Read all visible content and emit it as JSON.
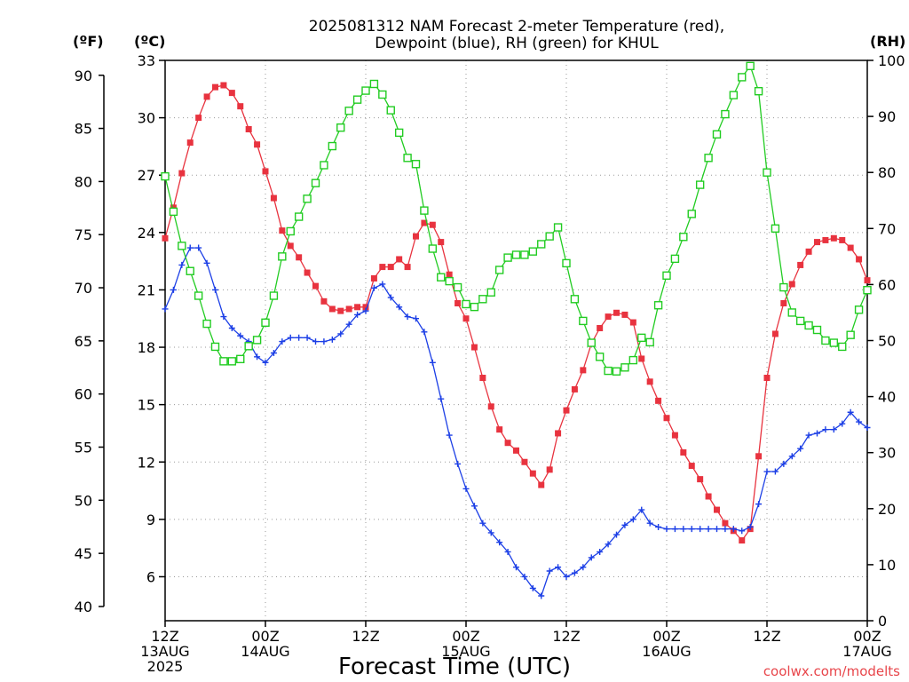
{
  "chart_data": {
    "type": "line",
    "title_lines": [
      "2025081312 NAM Forecast 2-meter Temperature (red),",
      "Dewpoint (blue), RH (green) for KHUL"
    ],
    "xlabel": "Forecast Time (UTC)",
    "credit": "coolwx.com/modelts",
    "units": {
      "fahrenheit": "(ºF)",
      "celsius": "(ºC)",
      "rh": "(RH)"
    },
    "x_ticks": [
      {
        "hour": 0,
        "lines": [
          "12Z",
          "13AUG",
          "2025"
        ]
      },
      {
        "hour": 12,
        "lines": [
          "00Z",
          "14AUG"
        ]
      },
      {
        "hour": 24,
        "lines": [
          "12Z"
        ]
      },
      {
        "hour": 36,
        "lines": [
          "00Z",
          "15AUG"
        ]
      },
      {
        "hour": 48,
        "lines": [
          "12Z"
        ]
      },
      {
        "hour": 60,
        "lines": [
          "00Z",
          "16AUG"
        ]
      },
      {
        "hour": 72,
        "lines": [
          "12Z"
        ]
      },
      {
        "hour": 84,
        "lines": [
          "00Z",
          "17AUG"
        ]
      }
    ],
    "xlim": [
      0,
      84
    ],
    "celsius_axis": {
      "ylim": [
        3.7,
        33
      ],
      "ticks": [
        6,
        9,
        12,
        15,
        18,
        21,
        24,
        27,
        30,
        33
      ]
    },
    "fahrenheit_ticks": [
      40,
      45,
      50,
      55,
      60,
      65,
      70,
      75,
      80,
      85,
      90
    ],
    "rh_axis": {
      "ylim": [
        0,
        100
      ],
      "ticks": [
        0,
        10,
        20,
        30,
        40,
        50,
        60,
        70,
        80,
        90,
        100
      ]
    },
    "grid": true,
    "series": [
      {
        "name": "Temperature",
        "axis": "celsius",
        "color": "#e8333f",
        "marker": "filled-square",
        "x": [
          0,
          1,
          2,
          3,
          4,
          5,
          6,
          7,
          8,
          9,
          10,
          11,
          12,
          13,
          14,
          15,
          16,
          17,
          18,
          19,
          20,
          21,
          22,
          23,
          24,
          25,
          26,
          27,
          28,
          29,
          30,
          31,
          32,
          33,
          34,
          35,
          36,
          37,
          38,
          39,
          40,
          41,
          42,
          43,
          44,
          45,
          46,
          47,
          48,
          49,
          50,
          51,
          52,
          53,
          54,
          55,
          56,
          57,
          58,
          59,
          60,
          61,
          62,
          63,
          64,
          65,
          66,
          67,
          68,
          69,
          70,
          71,
          72,
          73,
          74,
          75,
          76,
          77,
          78,
          79,
          80,
          81,
          82,
          83,
          84
        ],
        "values": [
          23.7,
          25.3,
          27.1,
          28.7,
          30.0,
          31.1,
          31.6,
          31.7,
          31.3,
          30.6,
          29.4,
          28.6,
          27.2,
          25.8,
          24.1,
          23.3,
          22.7,
          21.9,
          21.2,
          20.4,
          20.0,
          19.9,
          20.0,
          20.1,
          20.1,
          21.6,
          22.2,
          22.2,
          22.6,
          22.2,
          23.8,
          24.5,
          24.4,
          23.5,
          21.8,
          20.3,
          19.5,
          18.0,
          16.4,
          14.9,
          13.7,
          13.0,
          12.6,
          12.0,
          11.4,
          10.8,
          11.6,
          13.5,
          14.7,
          15.8,
          16.8,
          18.2,
          19.0,
          19.6,
          19.8,
          19.7,
          19.3,
          17.4,
          16.2,
          15.2,
          14.3,
          13.4,
          12.5,
          11.8,
          11.1,
          10.2,
          9.5,
          8.8,
          8.4,
          7.9,
          8.5,
          12.3,
          16.4,
          18.7,
          20.3,
          21.3,
          22.3,
          23.0,
          23.5,
          23.6,
          23.7,
          23.6,
          23.2,
          22.6,
          21.5
        ]
      },
      {
        "name": "Dewpoint",
        "axis": "celsius",
        "color": "#1c3fe6",
        "marker": "plus",
        "x": [
          0,
          1,
          2,
          3,
          4,
          5,
          6,
          7,
          8,
          9,
          10,
          11,
          12,
          13,
          14,
          15,
          16,
          17,
          18,
          19,
          20,
          21,
          22,
          23,
          24,
          25,
          26,
          27,
          28,
          29,
          30,
          31,
          32,
          33,
          34,
          35,
          36,
          37,
          38,
          39,
          40,
          41,
          42,
          43,
          44,
          45,
          46,
          47,
          48,
          49,
          50,
          51,
          52,
          53,
          54,
          55,
          56,
          57,
          58,
          59,
          60,
          61,
          62,
          63,
          64,
          65,
          66,
          67,
          68,
          69,
          70,
          71,
          72,
          73,
          74,
          75,
          76,
          77,
          78,
          79,
          80,
          81,
          82,
          83,
          84
        ],
        "values": [
          20.0,
          21.0,
          22.3,
          23.2,
          23.2,
          22.4,
          21.0,
          19.6,
          19.0,
          18.6,
          18.3,
          17.5,
          17.2,
          17.7,
          18.3,
          18.5,
          18.5,
          18.5,
          18.3,
          18.3,
          18.4,
          18.7,
          19.2,
          19.7,
          19.9,
          21.1,
          21.3,
          20.6,
          20.1,
          19.6,
          19.5,
          18.8,
          17.2,
          15.3,
          13.4,
          11.9,
          10.6,
          9.7,
          8.8,
          8.3,
          7.8,
          7.3,
          6.5,
          6.0,
          5.4,
          5.0,
          6.3,
          6.5,
          6.0,
          6.2,
          6.5,
          7.0,
          7.3,
          7.7,
          8.2,
          8.7,
          9.0,
          9.5,
          8.8,
          8.6,
          8.5,
          8.5,
          8.5,
          8.5,
          8.5,
          8.5,
          8.5,
          8.5,
          8.5,
          8.4,
          8.6,
          9.8,
          11.5,
          11.5,
          11.9,
          12.3,
          12.7,
          13.4,
          13.5,
          13.7,
          13.7,
          14.0,
          14.6,
          14.1,
          13.8
        ]
      },
      {
        "name": "RH",
        "axis": "rh",
        "color": "#22cc22",
        "marker": "open-square",
        "x": [
          0,
          1,
          2,
          3,
          4,
          5,
          6,
          7,
          8,
          9,
          10,
          11,
          12,
          13,
          14,
          15,
          16,
          17,
          18,
          19,
          20,
          21,
          22,
          23,
          24,
          25,
          26,
          27,
          28,
          29,
          30,
          31,
          32,
          33,
          34,
          35,
          36,
          37,
          38,
          39,
          40,
          41,
          42,
          43,
          44,
          45,
          46,
          47,
          48,
          49,
          50,
          51,
          52,
          53,
          54,
          55,
          56,
          57,
          58,
          59,
          60,
          61,
          62,
          63,
          64,
          65,
          66,
          67,
          68,
          69,
          70,
          71,
          72,
          73,
          74,
          75,
          76,
          77,
          78,
          79,
          80,
          81,
          82,
          83,
          84
        ],
        "values": [
          79.3,
          73.0,
          66.9,
          62.4,
          58.0,
          53.0,
          48.9,
          46.3,
          46.3,
          46.7,
          49.0,
          50.1,
          53.2,
          58.0,
          65.0,
          69.5,
          72.1,
          75.3,
          78.1,
          81.3,
          84.7,
          88.0,
          91.0,
          93.0,
          94.6,
          95.8,
          93.9,
          91.1,
          87.1,
          82.6,
          81.5,
          73.2,
          66.4,
          61.3,
          60.6,
          59.5,
          56.5,
          56.0,
          57.4,
          58.6,
          62.6,
          64.8,
          65.3,
          65.3,
          65.9,
          67.2,
          68.6,
          70.2,
          63.8,
          57.4,
          53.5,
          49.6,
          47.1,
          44.6,
          44.5,
          45.2,
          46.5,
          50.5,
          49.7,
          56.3,
          61.6,
          64.6,
          68.5,
          72.6,
          77.8,
          82.6,
          86.8,
          90.4,
          93.8,
          97.0,
          99.0,
          94.5,
          80.0,
          70.0,
          59.5,
          55.0,
          53.5,
          52.7,
          51.9,
          50.0,
          49.6,
          48.9,
          51.0,
          55.5,
          59.0
        ]
      }
    ]
  }
}
